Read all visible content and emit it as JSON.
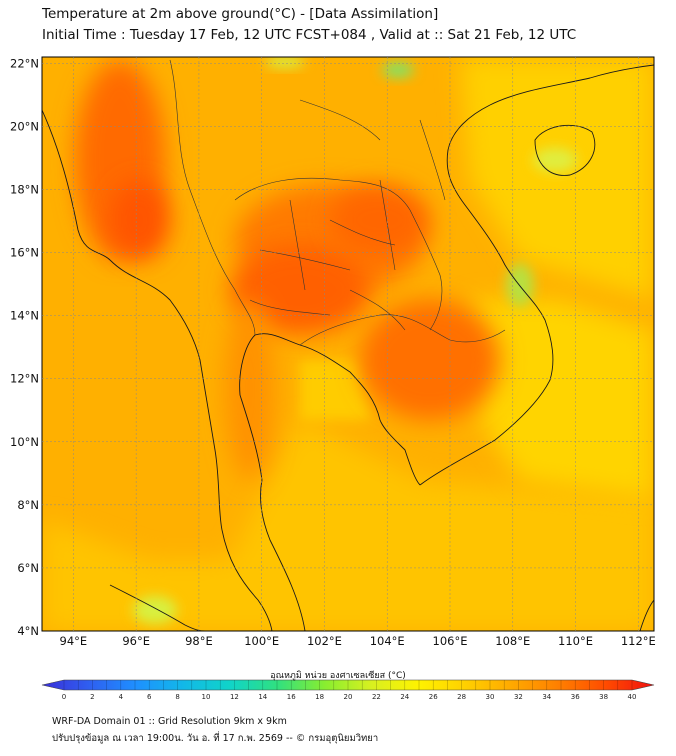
{
  "title_line1": "Temperature at 2m above ground(°C) - [Data Assimilation]",
  "title_line2": "Initial Time : Tuesday 17 Feb, 12 UTC FCST+084 , Valid at :: Sat 21 Feb, 12 UTC",
  "lat_labels": [
    "22°N",
    "20°N",
    "18°N",
    "16°N",
    "14°N",
    "12°N",
    "10°N",
    "8°N",
    "6°N",
    "4°N"
  ],
  "lat_values": [
    22,
    20,
    18,
    16,
    14,
    12,
    10,
    8,
    6,
    4
  ],
  "lon_labels": [
    "94°E",
    "96°E",
    "98°E",
    "100°E",
    "102°E",
    "104°E",
    "106°E",
    "108°E",
    "110°E",
    "112°E"
  ],
  "lon_values": [
    94,
    96,
    98,
    100,
    102,
    104,
    106,
    108,
    110,
    112
  ],
  "map_extent": {
    "lon_min": 93,
    "lon_max": 112.5,
    "lat_min": 4,
    "lat_max": 22.2
  },
  "colorbar": {
    "label": "อุณหภูมิ หน่วย องศาเซลเซียส (°C)",
    "ticks": [
      "0",
      "2",
      "4",
      "6",
      "8",
      "10",
      "12",
      "14",
      "16",
      "18",
      "20",
      "22",
      "24",
      "26",
      "28",
      "30",
      "32",
      "34",
      "36",
      "38",
      "40"
    ],
    "min": 0,
    "max": 40,
    "colors": [
      "#3a2fd8",
      "#2f5ff0",
      "#1e90ff",
      "#12b8e8",
      "#10d4c8",
      "#30e080",
      "#88ee30",
      "#d8f020",
      "#fff200",
      "#ffd000",
      "#ffa800",
      "#ff7e00",
      "#ff4a00",
      "#f01010"
    ]
  },
  "footer_line1": "WRF-DA Domain 01 :: Grid Resolution 9km x 9km",
  "footer_line2": "ปรับปรุงข้อมูล ณ เวลา 19:00น. วัน อ. ที่ 17 ก.พ. 2569 -- © กรมอุตุนิยมวิทยา"
}
